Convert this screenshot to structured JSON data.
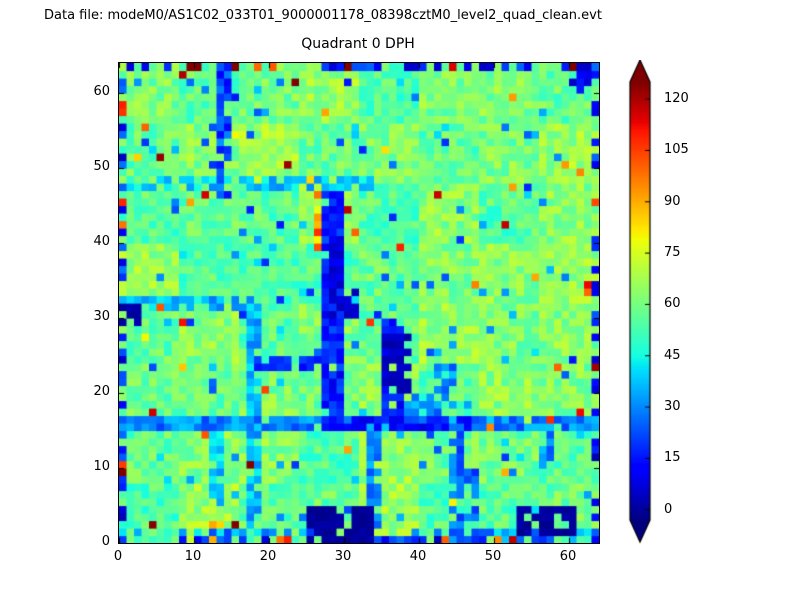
{
  "header": {
    "data_file_label": "Data file: modeM0/AS1C02_033T01_9000001178_08398cztM0_level2_quad_clean.evt"
  },
  "chart_data": {
    "type": "heatmap",
    "title": "Quadrant 0 DPH",
    "x_ticks": [
      0,
      10,
      20,
      30,
      40,
      50,
      60
    ],
    "y_ticks": [
      0,
      10,
      20,
      30,
      40,
      50,
      60
    ],
    "x_range": [
      0,
      64
    ],
    "y_range": [
      0,
      64
    ],
    "grid_size": 64,
    "colormap": "jet",
    "colorbar": {
      "ticks": [
        0,
        15,
        30,
        45,
        60,
        75,
        90,
        105,
        120
      ],
      "value_min": -3,
      "value_max": 125,
      "extend": "both",
      "under_color": "#00007f",
      "over_color": "#7f0000"
    },
    "generation": {
      "seed": 1178,
      "base_min": 50,
      "base_max": 68,
      "block_size": 8,
      "block_offset_scale": 13,
      "block_offset_bias": 0.45,
      "cold_scatter_prob": 0.035,
      "cold_scatter_min": 15,
      "cold_scatter_span": 28,
      "hot_scatter_prob": 0.016,
      "hot_scatter_min": 78,
      "hot_scatter_span": 52,
      "edge_cold_prob": 0.42,
      "edge_hot_prob": 0.06,
      "features": [
        {
          "x0": 13,
          "x1": 14,
          "y0": 46,
          "y1": 63,
          "v": 22,
          "j": 10,
          "skip": 0.15
        },
        {
          "x0": 12,
          "x1": 13,
          "y0": 4,
          "y1": 15,
          "v": 38,
          "j": 8,
          "skip": 0.3
        },
        {
          "x0": 17,
          "x1": 18,
          "y0": 2,
          "y1": 31,
          "v": 36,
          "j": 8,
          "skip": 0.25
        },
        {
          "x0": 0,
          "x1": 63,
          "y0": 15,
          "y1": 16,
          "v": 30,
          "j": 9,
          "skip": 0.1
        },
        {
          "x0": 27,
          "x1": 46,
          "y0": 15,
          "y1": 16,
          "v": 13,
          "j": 6,
          "skip": 0.15
        },
        {
          "x0": 0,
          "x1": 63,
          "y0": 1,
          "y1": 1,
          "v": 32,
          "j": 12,
          "skip": 0.5
        },
        {
          "x0": 27,
          "x1": 29,
          "y0": 16,
          "y1": 47,
          "v": 16,
          "j": 8,
          "skip": 0.12
        },
        {
          "x0": 28,
          "x1": 29,
          "y0": 30,
          "y1": 40,
          "v": 6,
          "j": 4,
          "skip": 0.2
        },
        {
          "x0": 26,
          "x1": 26,
          "y0": 38,
          "y1": 46,
          "v": 95,
          "j": 18,
          "skip": 0.25
        },
        {
          "x0": 35,
          "x1": 37,
          "y0": 16,
          "y1": 29,
          "v": 14,
          "j": 7,
          "skip": 0.2
        },
        {
          "x0": 35,
          "x1": 38,
          "y0": 20,
          "y1": 27,
          "v": 4,
          "j": 3,
          "skip": 0.25
        },
        {
          "x0": 33,
          "x1": 34,
          "y0": 0,
          "y1": 15,
          "v": 30,
          "j": 8,
          "skip": 0.2
        },
        {
          "x0": 44,
          "x1": 45,
          "y0": 0,
          "y1": 15,
          "v": 26,
          "j": 8,
          "skip": 0.2
        },
        {
          "x0": 46,
          "x1": 47,
          "y0": 0,
          "y1": 9,
          "v": 24,
          "j": 8,
          "skip": 0.3
        },
        {
          "x0": 38,
          "x1": 41,
          "y0": 16,
          "y1": 19,
          "v": 28,
          "j": 9,
          "skip": 0.35
        },
        {
          "x0": 42,
          "x1": 44,
          "y0": 16,
          "y1": 23,
          "v": 30,
          "j": 8,
          "skip": 0.3
        },
        {
          "x0": 0,
          "x1": 34,
          "y0": 47,
          "y1": 48,
          "v": 38,
          "j": 8,
          "skip": 0.3
        },
        {
          "x0": 0,
          "x1": 17,
          "y0": 31,
          "y1": 32,
          "v": 36,
          "j": 8,
          "skip": 0.3
        },
        {
          "x0": 18,
          "x1": 26,
          "y0": 23,
          "y1": 24,
          "v": 16,
          "j": 6,
          "skip": 0.2
        },
        {
          "x0": 56,
          "x1": 57,
          "y0": 10,
          "y1": 15,
          "v": 30,
          "j": 8,
          "skip": 0.3
        },
        {
          "x0": 25,
          "x1": 33,
          "y0": 0,
          "y1": 4,
          "v": 0,
          "j": 2,
          "skip": 0.08
        },
        {
          "x0": 53,
          "x1": 60,
          "y0": 1,
          "y1": 4,
          "v": 0,
          "j": 2,
          "skip": 0.15
        },
        {
          "x0": 0,
          "x1": 2,
          "y0": 29,
          "y1": 31,
          "v": 1,
          "j": 2,
          "skip": 0.1
        },
        {
          "x0": 29,
          "x1": 31,
          "y0": 30,
          "y1": 33,
          "v": 5,
          "j": 3,
          "skip": 0.3
        },
        {
          "x0": 60,
          "x1": 63,
          "y0": 61,
          "y1": 63,
          "v": 10,
          "j": 6,
          "skip": 0.3
        }
      ],
      "hot_pixels": [
        {
          "x": 8,
          "y": 62,
          "v": 120
        },
        {
          "x": 30,
          "y": 63,
          "v": 125
        },
        {
          "x": 44,
          "y": 63,
          "v": 115
        },
        {
          "x": 57,
          "y": 16,
          "v": 108
        },
        {
          "x": 49,
          "y": 15,
          "v": 95
        },
        {
          "x": 58,
          "y": 23,
          "v": 100
        },
        {
          "x": 21,
          "y": 0,
          "v": 98
        },
        {
          "x": 22,
          "y": 0,
          "v": 110
        },
        {
          "x": 50,
          "y": 0,
          "v": 95
        },
        {
          "x": 12,
          "y": 0,
          "v": 90
        },
        {
          "x": 30,
          "y": 44,
          "v": 118
        },
        {
          "x": 31,
          "y": 41,
          "v": 100
        },
        {
          "x": 5,
          "y": 31,
          "v": 102
        },
        {
          "x": 47,
          "y": 34,
          "v": 96
        },
        {
          "x": 3,
          "y": 55,
          "v": 100
        },
        {
          "x": 52,
          "y": 47,
          "v": 92
        }
      ]
    }
  }
}
